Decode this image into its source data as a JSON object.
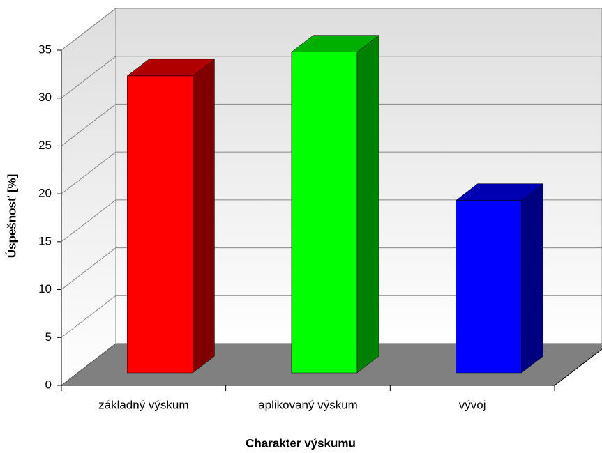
{
  "chart_data": {
    "type": "bar3d",
    "x_label": "Charakter výskumu",
    "y_label": "Úspešnosť [%]",
    "categories": [
      "základný výskum",
      "aplikovaný výskum",
      "vývoj"
    ],
    "values": [
      31,
      33.5,
      18
    ],
    "colors": [
      "#ff0000",
      "#00ff00",
      "#0000ff"
    ],
    "side_colors": [
      "#800000",
      "#008000",
      "#000080"
    ],
    "top_colors": [
      "#b00000",
      "#00b000",
      "#0000b0"
    ],
    "ylim": [
      0,
      35
    ],
    "yticks": [
      0,
      5,
      10,
      15,
      20,
      25,
      30,
      35
    ],
    "grid": true
  }
}
